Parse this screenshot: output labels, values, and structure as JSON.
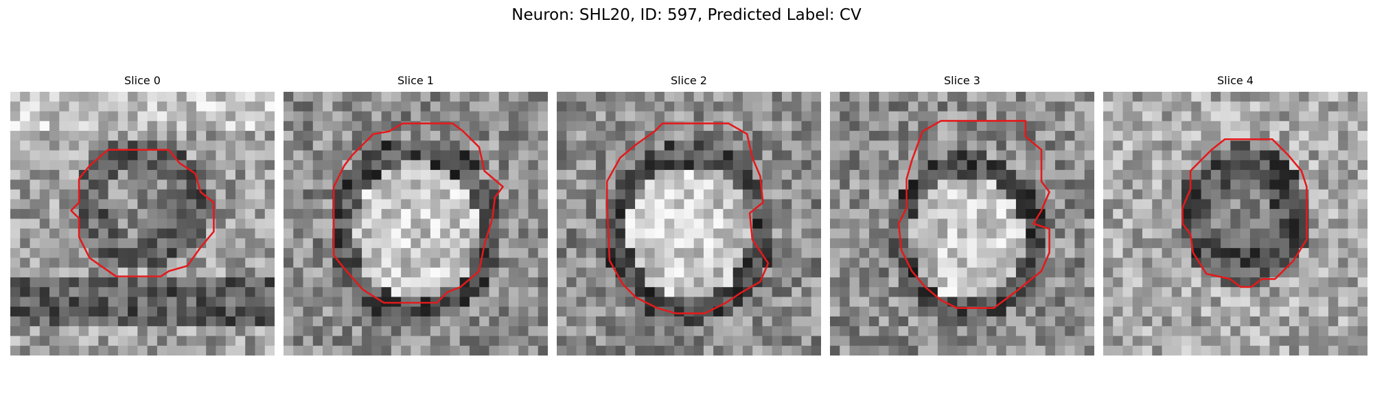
{
  "figure": {
    "title": "Neuron: SHL20, ID: 597, Predicted Label: CV"
  },
  "panels": [
    {
      "title": "Slice 0",
      "brightness": "mixed",
      "contour_color": "#e31a1c"
    },
    {
      "title": "Slice 1",
      "brightness": "bright-center",
      "contour_color": "#e31a1c"
    },
    {
      "title": "Slice 2",
      "brightness": "bright-center",
      "contour_color": "#e31a1c"
    },
    {
      "title": "Slice 3",
      "brightness": "bright-center",
      "contour_color": "#e31a1c"
    },
    {
      "title": "Slice 4",
      "brightness": "dark-ring",
      "contour_color": "#e31a1c"
    }
  ]
}
